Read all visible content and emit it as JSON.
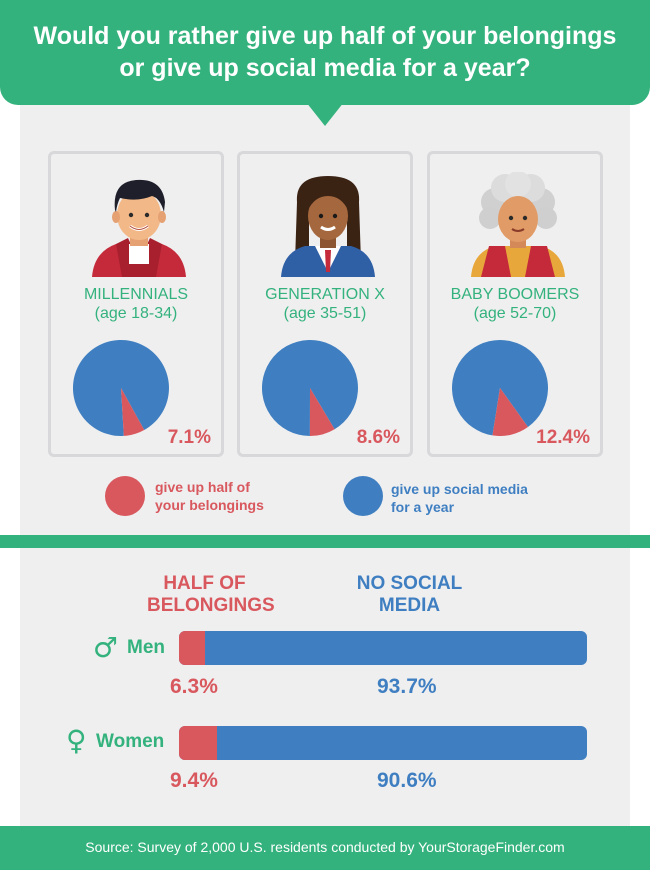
{
  "title": "Would you rather give up half of your belongings or give up social media for a year?",
  "colors": {
    "green": "#34b27d",
    "red": "#d8585e",
    "blue": "#3f7fc1",
    "panel": "#efeff0"
  },
  "generations": [
    {
      "name": "MILLENNIALS",
      "age": "(age 18-34)",
      "label": "7.1%",
      "avatar_icon": "young-man-avatar-icon"
    },
    {
      "name": "GENERATION X",
      "age": "(age 35-51)",
      "label": "8.6%",
      "avatar_icon": "businesswoman-avatar-icon"
    },
    {
      "name": "BABY BOOMERS",
      "age": "(age 52-70)",
      "label": "12.4%",
      "avatar_icon": "older-woman-avatar-icon"
    }
  ],
  "legend": {
    "belongings_line1": "give up half of",
    "belongings_line2": "your belongings",
    "social_line1": "give up social media",
    "social_line2": "for a year"
  },
  "bars_header": {
    "belongings_line1": "HALF OF",
    "belongings_line2": "BELONGINGS",
    "social_line1": "NO SOCIAL",
    "social_line2": "MEDIA"
  },
  "genders": [
    {
      "label": "Men",
      "icon": "male-symbol-icon",
      "icon_glyph": "♂",
      "belongings_label": "6.3%",
      "social_label": "93.7%"
    },
    {
      "label": "Women",
      "icon": "female-symbol-icon",
      "icon_glyph": "♀",
      "belongings_label": "9.4%",
      "social_label": "90.6%"
    }
  ],
  "footer": "Source: Survey of 2,000 U.S. residents conducted by YourStorageFinder.com",
  "chart_data": [
    {
      "type": "pie",
      "categories": [
        "give up half of your belongings",
        "give up social media for a year"
      ],
      "series": [
        {
          "name": "MILLENNIALS",
          "values": [
            7.1,
            92.9
          ]
        },
        {
          "name": "GENERATION X",
          "values": [
            8.6,
            91.4
          ]
        },
        {
          "name": "BABY BOOMERS",
          "values": [
            12.4,
            87.6
          ]
        }
      ],
      "legend": [
        "give up half of your belongings",
        "give up social media for a year"
      ]
    },
    {
      "type": "bar",
      "orientation": "horizontal",
      "stacked": true,
      "categories": [
        "Men",
        "Women"
      ],
      "series": [
        {
          "name": "HALF OF BELONGINGS",
          "values": [
            6.3,
            9.4
          ]
        },
        {
          "name": "NO SOCIAL MEDIA",
          "values": [
            93.7,
            90.6
          ]
        }
      ],
      "xlim": [
        0,
        100
      ]
    }
  ]
}
